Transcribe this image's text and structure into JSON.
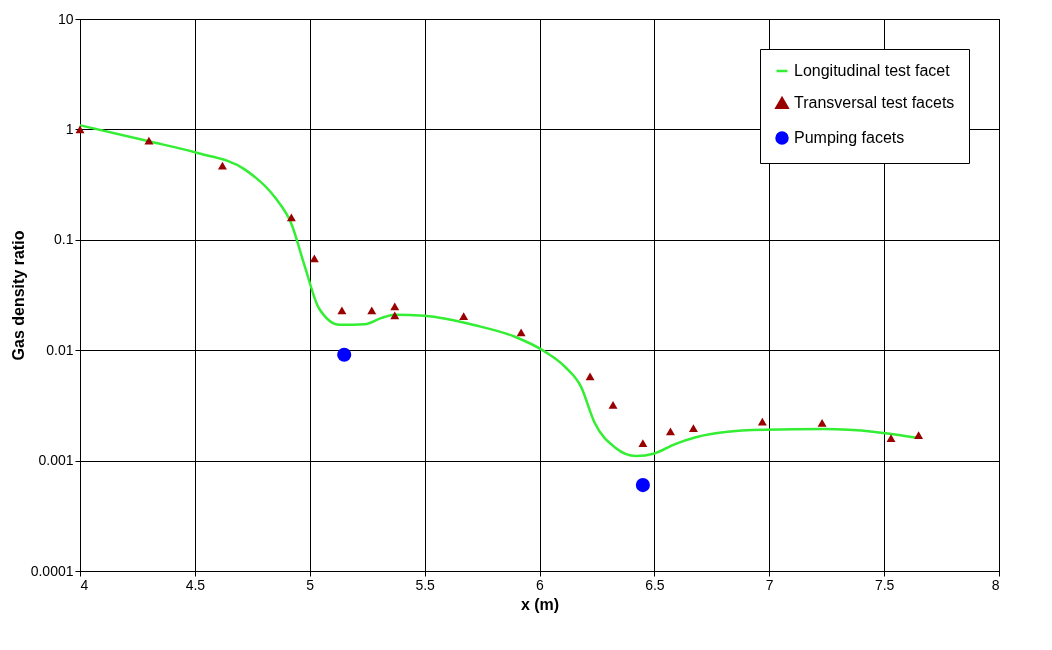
{
  "chart_data": {
    "type": "scatter",
    "xlabel": "x (m)",
    "ylabel": "Gas density ratio",
    "log": "y",
    "grid": true,
    "legend": "top right",
    "xlim": [
      4,
      8
    ],
    "xticks": [
      4,
      4.5,
      5,
      5.5,
      6,
      6.5,
      7,
      7.5,
      8
    ],
    "ylim": [
      0.0001,
      10
    ],
    "yticks": [
      0.0001,
      0.001,
      0.01,
      0.1,
      1,
      10
    ],
    "series": [
      {
        "name": "Longitudinal test facet",
        "type": "line",
        "marker": "none",
        "color": "#33ee33",
        "x": [
          4.0,
          4.3,
          4.5,
          4.72,
          4.85,
          4.92,
          4.98,
          5.04,
          5.13,
          5.24,
          5.31,
          5.37,
          5.5,
          5.72,
          5.89,
          6.02,
          6.11,
          6.18,
          6.24,
          6.33,
          6.42,
          6.5,
          6.59,
          6.68,
          6.81,
          6.98,
          7.24,
          7.46,
          7.65
        ],
        "values": [
          1.09,
          0.78,
          0.62,
          0.43,
          0.24,
          0.14,
          0.056,
          0.024,
          0.017,
          0.0172,
          0.0195,
          0.021,
          0.0205,
          0.0168,
          0.0133,
          0.0098,
          0.0071,
          0.0047,
          0.0022,
          0.00131,
          0.0011,
          0.00116,
          0.00141,
          0.00163,
          0.00182,
          0.0019,
          0.00193,
          0.00182,
          0.0016
        ]
      },
      {
        "name": "Transversal test facets",
        "marker": "triangle",
        "color": "#990000",
        "x": [
          4.0,
          4.3,
          4.62,
          4.92,
          5.02,
          5.14,
          5.27,
          5.37,
          5.37,
          5.67,
          5.92,
          6.22,
          6.32,
          6.45,
          6.57,
          6.67,
          6.97,
          7.23,
          7.53,
          7.65
        ],
        "values": [
          1.0,
          0.79,
          0.47,
          0.16,
          0.068,
          0.023,
          0.023,
          0.025,
          0.0207,
          0.0204,
          0.0145,
          0.0058,
          0.0032,
          0.00144,
          0.00184,
          0.00197,
          0.00226,
          0.0022,
          0.0016,
          0.0017
        ]
      },
      {
        "name": "Pumping facets",
        "marker": "circle",
        "color": "#0000ff",
        "x": [
          5.15,
          6.45
        ],
        "values": [
          0.0091,
          0.0006
        ]
      }
    ]
  }
}
